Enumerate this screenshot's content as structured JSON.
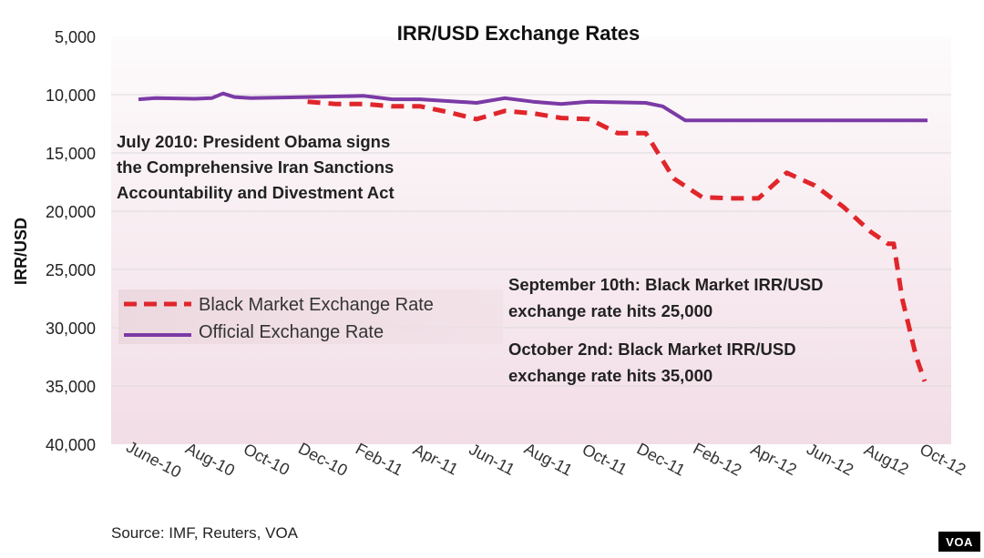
{
  "chart_data": {
    "type": "line",
    "title": "IRR/USD Exchange Rates",
    "ylabel": "IRR/USD",
    "ylim": [
      5000,
      40000
    ],
    "y_inverted": true,
    "y_ticks": [
      "5,000",
      "10,000",
      "15,000",
      "20,000",
      "25,000",
      "30,000",
      "35,000",
      "40,000"
    ],
    "y_tick_values": [
      5000,
      10000,
      15000,
      20000,
      25000,
      30000,
      35000,
      40000
    ],
    "categories": [
      "June-10",
      "Aug-10",
      "Oct-10",
      "Dec-10",
      "Feb-11",
      "Apr-11",
      "Jun-11",
      "Aug-11",
      "Oct-11",
      "Dec-11",
      "Feb-12",
      "Apr-12",
      "Jun-12",
      "Aug12",
      "Oct-12"
    ],
    "grid": true,
    "series": [
      {
        "name": "Black Market Exchange Rate",
        "style": "dashed",
        "color": "#e0262b",
        "points": [
          [
            3.0,
            10600
          ],
          [
            3.5,
            10800
          ],
          [
            4.0,
            10800
          ],
          [
            4.5,
            11000
          ],
          [
            5.0,
            11000
          ],
          [
            5.5,
            11500
          ],
          [
            6.0,
            12100
          ],
          [
            6.5,
            11400
          ],
          [
            7.0,
            11600
          ],
          [
            7.5,
            12000
          ],
          [
            8.0,
            12100
          ],
          [
            8.5,
            13300
          ],
          [
            9.0,
            13300
          ],
          [
            9.5,
            17200
          ],
          [
            10.0,
            18800
          ],
          [
            10.5,
            18900
          ],
          [
            11.0,
            18900
          ],
          [
            11.5,
            16700
          ],
          [
            12.0,
            17800
          ],
          [
            12.5,
            19600
          ],
          [
            13.0,
            21800
          ],
          [
            13.3,
            22800
          ],
          [
            13.4,
            22800
          ],
          [
            13.55,
            27500
          ],
          [
            13.8,
            32500
          ],
          [
            13.95,
            34600
          ]
        ]
      },
      {
        "name": "Official Exchange Rate",
        "style": "solid",
        "color": "#7b3aa5",
        "points": [
          [
            0.0,
            10400
          ],
          [
            0.3,
            10300
          ],
          [
            1.0,
            10350
          ],
          [
            1.3,
            10300
          ],
          [
            1.5,
            9900
          ],
          [
            1.7,
            10200
          ],
          [
            2.0,
            10300
          ],
          [
            3.0,
            10200
          ],
          [
            4.0,
            10100
          ],
          [
            4.5,
            10400
          ],
          [
            5.0,
            10400
          ],
          [
            6.0,
            10700
          ],
          [
            6.5,
            10300
          ],
          [
            7.0,
            10600
          ],
          [
            7.5,
            10800
          ],
          [
            8.0,
            10600
          ],
          [
            9.0,
            10700
          ],
          [
            9.3,
            11000
          ],
          [
            9.7,
            12200
          ],
          [
            10.0,
            12200
          ],
          [
            14.0,
            12200
          ]
        ]
      }
    ],
    "annotations": [
      "July 2010: President Obama signs",
      "the Comprehensive Iran Sanctions",
      "Accountability and Divestment Act",
      "September 10th: Black Market IRR/USD",
      "exchange rate hits 25,000",
      "October 2nd: Black Market IRR/USD",
      "exchange rate hits 35,000"
    ],
    "legend": {
      "placement": "center-left",
      "entries": [
        "Black Market Exchange Rate",
        "Official Exchange Rate"
      ]
    }
  },
  "source": "Source: IMF, Reuters, VOA",
  "logo_text": "VOA",
  "colors": {
    "black_market": "#e0262b",
    "official": "#7b3aa5",
    "grid": "#dddddd",
    "background_top": "#fdfbfc",
    "background_bottom": "#f2dde6"
  }
}
